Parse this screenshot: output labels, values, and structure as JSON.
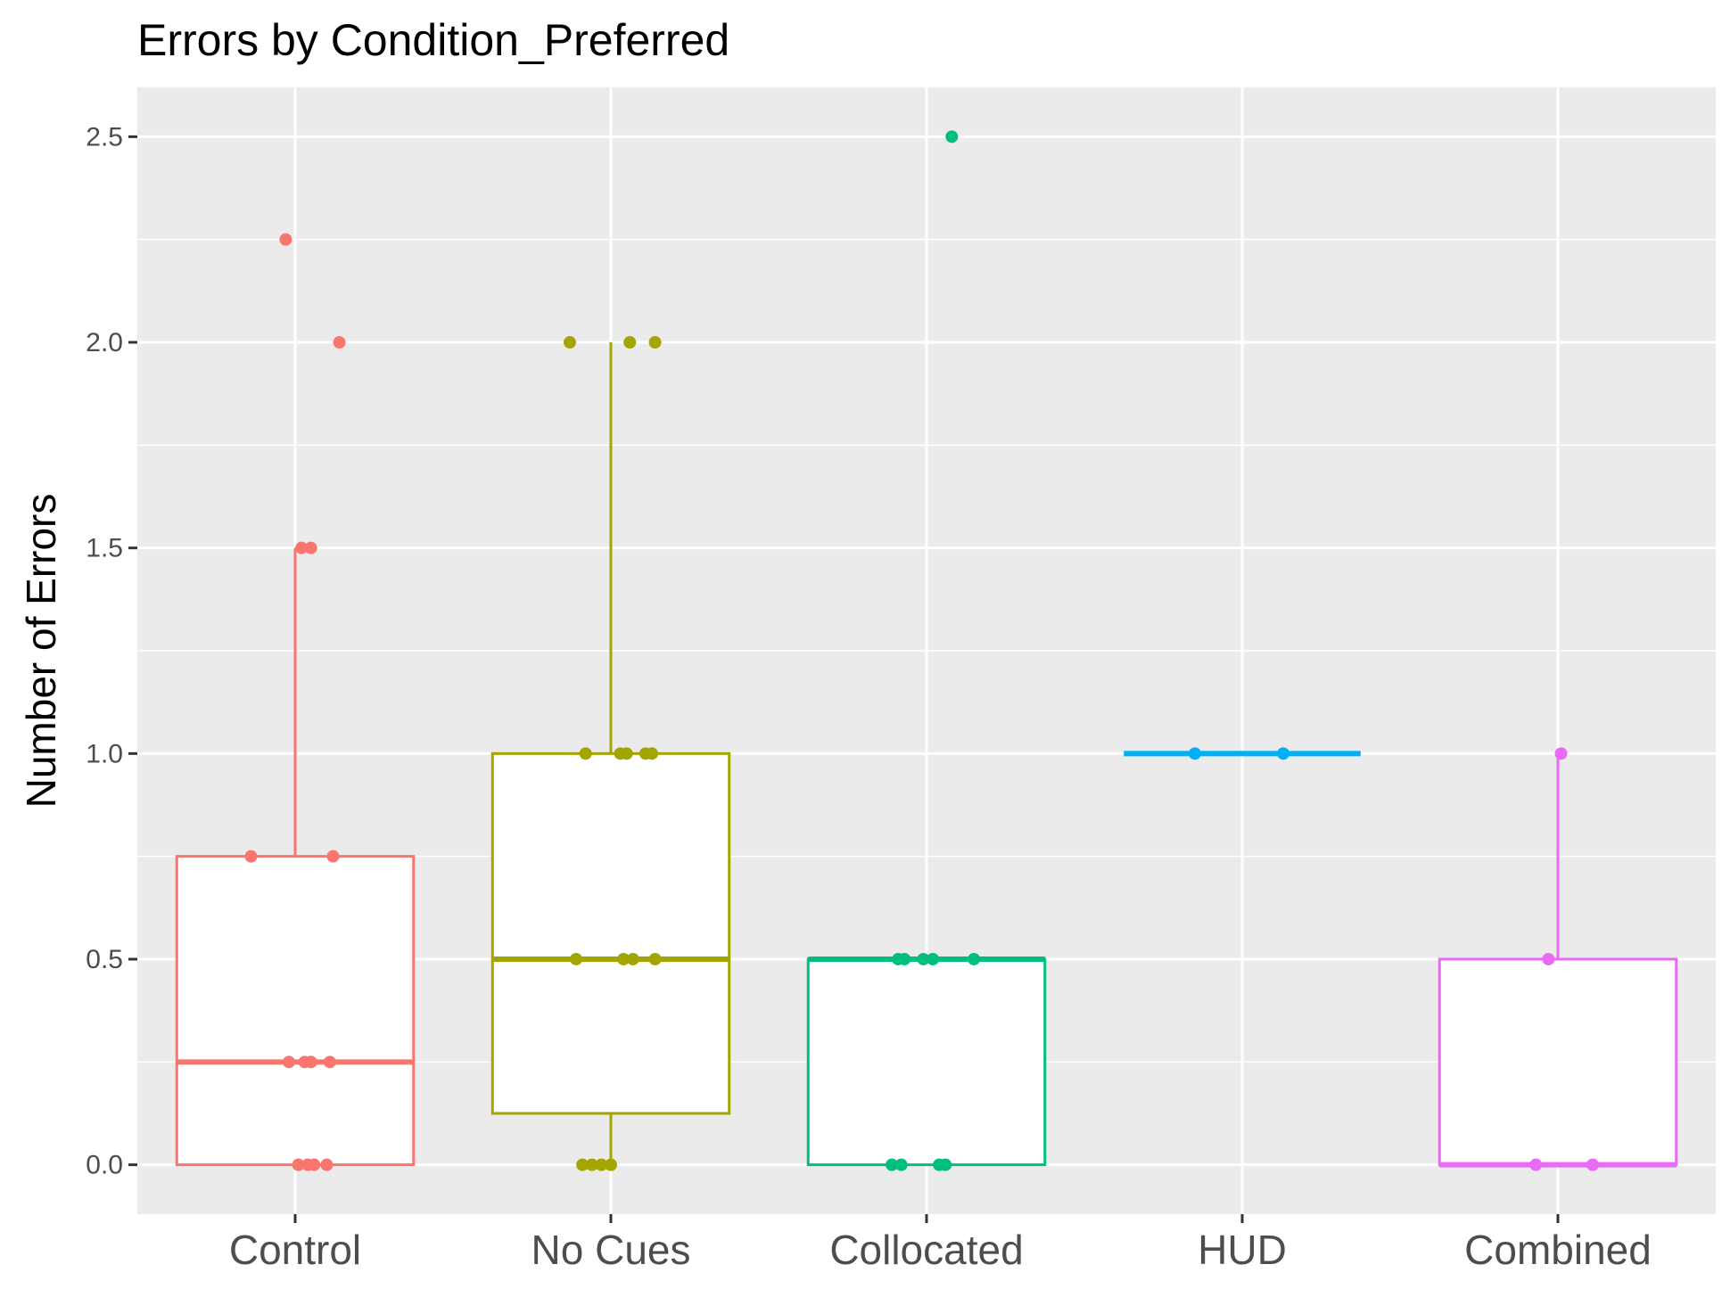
{
  "chart_data": {
    "type": "boxplot",
    "title": "Errors by Condition_Preferred",
    "xlabel": "",
    "ylabel": "Number of Errors",
    "ylim": [
      -0.12,
      2.62
    ],
    "yticks": [
      0.0,
      0.5,
      1.0,
      1.5,
      2.0,
      2.5
    ],
    "ytick_labels": [
      "0.0",
      "0.5",
      "1.0",
      "1.5",
      "2.0",
      "2.5"
    ],
    "grid": true,
    "legend": "none",
    "categories": [
      "Control",
      "No Cues",
      "Collocated",
      "HUD",
      "Combined"
    ],
    "series": [
      {
        "category": "Control",
        "color": "#F8766D",
        "q1": 0.0,
        "median": 0.25,
        "q3": 0.75,
        "whisker_low": 0.0,
        "whisker_high": 1.5,
        "points": [
          [
            -0.03,
            2.25
          ],
          [
            0.14,
            2.0
          ],
          [
            0.02,
            1.5
          ],
          [
            0.05,
            1.5
          ],
          [
            -0.14,
            0.75
          ],
          [
            0.12,
            0.75
          ],
          [
            -0.02,
            0.25
          ],
          [
            0.03,
            0.25
          ],
          [
            0.05,
            0.25
          ],
          [
            0.11,
            0.25
          ],
          [
            0.01,
            0.0
          ],
          [
            0.04,
            0.0
          ],
          [
            0.06,
            0.0
          ],
          [
            0.1,
            0.0
          ]
        ]
      },
      {
        "category": "No Cues",
        "color": "#A3A500",
        "q1": 0.125,
        "median": 0.5,
        "q3": 1.0,
        "whisker_low": 0.0,
        "whisker_high": 2.0,
        "points": [
          [
            -0.13,
            2.0
          ],
          [
            0.06,
            2.0
          ],
          [
            0.14,
            2.0
          ],
          [
            -0.08,
            1.0
          ],
          [
            0.03,
            1.0
          ],
          [
            0.05,
            1.0
          ],
          [
            0.11,
            1.0
          ],
          [
            0.13,
            1.0
          ],
          [
            -0.11,
            0.5
          ],
          [
            0.04,
            0.5
          ],
          [
            0.07,
            0.5
          ],
          [
            0.14,
            0.5
          ],
          [
            -0.09,
            0.0
          ],
          [
            -0.06,
            0.0
          ],
          [
            -0.03,
            0.0
          ],
          [
            0.0,
            0.0
          ]
        ]
      },
      {
        "category": "Collocated",
        "color": "#00BF7D",
        "q1": 0.0,
        "median": 0.5,
        "q3": 0.5,
        "whisker_low": 0.0,
        "whisker_high": 0.5,
        "points": [
          [
            0.08,
            2.5
          ],
          [
            -0.09,
            0.5
          ],
          [
            -0.07,
            0.5
          ],
          [
            -0.01,
            0.5
          ],
          [
            0.02,
            0.5
          ],
          [
            0.15,
            0.5
          ],
          [
            -0.11,
            0.0
          ],
          [
            -0.08,
            0.0
          ],
          [
            0.04,
            0.0
          ],
          [
            0.06,
            0.0
          ]
        ]
      },
      {
        "category": "HUD",
        "color": "#00B0F6",
        "q1": 1.0,
        "median": 1.0,
        "q3": 1.0,
        "whisker_low": 1.0,
        "whisker_high": 1.0,
        "points": [
          [
            -0.15,
            1.0
          ],
          [
            0.13,
            1.0
          ]
        ]
      },
      {
        "category": "Combined",
        "color": "#E76BF3",
        "q1": 0.0,
        "median": 0.0,
        "q3": 0.5,
        "whisker_low": 0.0,
        "whisker_high": 1.0,
        "points": [
          [
            0.01,
            1.0
          ],
          [
            -0.03,
            0.5
          ],
          [
            -0.07,
            0.0
          ],
          [
            0.11,
            0.0
          ]
        ]
      }
    ]
  }
}
